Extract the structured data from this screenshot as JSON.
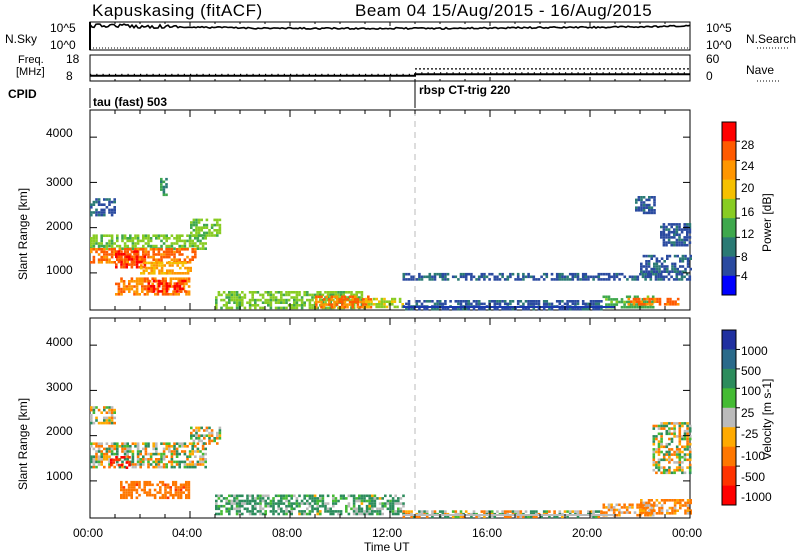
{
  "header": {
    "station": "Kapuskasing (fitACF)",
    "beam_title": "Beam 04 15/Aug/2015 - 16/Aug/2015"
  },
  "panels": {
    "nsky_label": "N.Sky",
    "nsky_ticks": [
      "10^5",
      "10^0"
    ],
    "nsearch_label": "N.Search",
    "nsearch_ticks": [
      "10^5",
      "10^0"
    ],
    "freq_label_1": "Freq.",
    "freq_label_2": "[MHz]",
    "freq_ticks": [
      "18",
      "8"
    ],
    "nave_label": "Nave",
    "nave_ticks": [
      "60",
      "0"
    ],
    "cpid_label": "CPID",
    "cpid_1": "tau (fast) 503",
    "cpid_2": "rbsp CT-trig 220"
  },
  "axes": {
    "ylabel": "Slant Range [km]",
    "yticks": [
      "4000",
      "3000",
      "2000",
      "1000"
    ],
    "xlabel": "Time UT",
    "xticks": [
      "00:00",
      "04:00",
      "08:00",
      "12:00",
      "16:00",
      "20:00",
      "00:00"
    ]
  },
  "power_bar": {
    "label": "Power [dB]",
    "ticks": [
      "28",
      "24",
      "20",
      "16",
      "12",
      "8",
      "4"
    ],
    "colors": [
      "#ff0000",
      "#ff5a00",
      "#ff9600",
      "#f5c000",
      "#88cc22",
      "#3ea84c",
      "#2a7a74",
      "#2a4aa0",
      "#0000ff"
    ]
  },
  "velocity_bar": {
    "label": "Velocity [m s-1]",
    "ticks": [
      "1000",
      "500",
      "100",
      "25",
      "-25",
      "-100",
      "-500",
      "-1000"
    ],
    "colors": [
      "#2030a0",
      "#2a6a8a",
      "#2c8c5c",
      "#44bb33",
      "#bbbbbb",
      "#ffaa00",
      "#ff7700",
      "#ff3300",
      "#ff0000"
    ]
  },
  "chart_data": [
    {
      "type": "line",
      "title": "N.Sky / N.Search",
      "x_range_hours": [
        0,
        24
      ],
      "ylim": [
        0,
        100000
      ],
      "scale": "log",
      "series": [
        {
          "name": "N.Sky",
          "x": [
            0,
            1,
            2,
            3,
            4,
            5,
            6,
            8,
            10,
            12,
            14,
            16,
            18,
            20,
            22,
            23,
            24
          ],
          "values": [
            40000,
            50000,
            30000,
            30000,
            20000,
            20000,
            15000,
            12000,
            12000,
            12000,
            12000,
            15000,
            18000,
            20000,
            25000,
            30000,
            40000
          ]
        },
        {
          "name": "N.Search",
          "x": [
            0,
            24
          ],
          "values": [
            1,
            1
          ]
        }
      ]
    },
    {
      "type": "line",
      "title": "Freq. / Nave",
      "x_range_hours": [
        0,
        24
      ],
      "series": [
        {
          "name": "Freq. [MHz]",
          "x": [
            0,
            13,
            13,
            24
          ],
          "values": [
            10,
            10,
            10.6,
            10.6
          ],
          "ylim": [
            8,
            18
          ]
        },
        {
          "name": "Nave",
          "x": [
            13,
            24
          ],
          "values": [
            28,
            28
          ],
          "ylim": [
            0,
            60
          ]
        }
      ]
    },
    {
      "type": "heatmap",
      "title": "Power [dB]",
      "x_range_hours": [
        0,
        24
      ],
      "ylim_km": [
        180,
        4600
      ],
      "value_range": [
        0,
        30
      ],
      "regions": [
        {
          "t0": 0.0,
          "t1": 1.0,
          "r0": 2300,
          "r1": 2650,
          "value": 6
        },
        {
          "t0": 0.0,
          "t1": 4.6,
          "r0": 1550,
          "r1": 1850,
          "value": 14
        },
        {
          "t0": 0.0,
          "t1": 4.2,
          "r0": 1250,
          "r1": 1550,
          "value": 24
        },
        {
          "t0": 1.0,
          "t1": 2.2,
          "r0": 1150,
          "r1": 1500,
          "value": 27
        },
        {
          "t0": 2.0,
          "t1": 4.0,
          "r0": 1000,
          "r1": 1250,
          "value": 20
        },
        {
          "t0": 1.0,
          "t1": 4.0,
          "r0": 500,
          "r1": 900,
          "value": 23
        },
        {
          "t0": 2.3,
          "t1": 3.8,
          "r0": 600,
          "r1": 850,
          "value": 27
        },
        {
          "t0": 4.0,
          "t1": 5.2,
          "r0": 1800,
          "r1": 2200,
          "value": 14
        },
        {
          "t0": 2.8,
          "t1": 3.1,
          "r0": 2700,
          "r1": 3100,
          "value": 10
        },
        {
          "t0": 5.0,
          "t1": 11.0,
          "r0": 250,
          "r1": 600,
          "value": 14
        },
        {
          "t0": 9.0,
          "t1": 11.2,
          "r0": 250,
          "r1": 500,
          "value": 24
        },
        {
          "t0": 11.0,
          "t1": 12.5,
          "r0": 250,
          "r1": 450,
          "value": 16
        },
        {
          "t0": 12.5,
          "t1": 20.5,
          "r0": 200,
          "r1": 400,
          "value": 6
        },
        {
          "t0": 12.5,
          "t1": 24.0,
          "r0": 850,
          "r1": 1000,
          "value": 6
        },
        {
          "t0": 20.5,
          "t1": 22.5,
          "r0": 250,
          "r1": 500,
          "value": 12
        },
        {
          "t0": 21.5,
          "t1": 23.5,
          "r0": 280,
          "r1": 450,
          "value": 24
        },
        {
          "t0": 22.0,
          "t1": 24.0,
          "r0": 1000,
          "r1": 1400,
          "value": 6
        },
        {
          "t0": 22.8,
          "t1": 24.0,
          "r0": 1600,
          "r1": 2100,
          "value": 6
        },
        {
          "t0": 21.8,
          "t1": 22.6,
          "r0": 2300,
          "r1": 2700,
          "value": 6
        }
      ]
    },
    {
      "type": "heatmap",
      "title": "Velocity [m s-1]",
      "x_range_hours": [
        0,
        24
      ],
      "ylim_km": [
        180,
        4600
      ],
      "value_range": [
        -1000,
        1000
      ],
      "regions": [
        {
          "t0": 0.0,
          "t1": 4.6,
          "r0": 1300,
          "r1": 1850,
          "value": 0
        },
        {
          "t0": 0.0,
          "t1": 1.0,
          "r0": 2300,
          "r1": 2650,
          "value": 0
        },
        {
          "t0": 0.8,
          "t1": 1.6,
          "r0": 1300,
          "r1": 1550,
          "value": -800
        },
        {
          "t0": 1.2,
          "t1": 4.0,
          "r0": 600,
          "r1": 1000,
          "value": -200
        },
        {
          "t0": 4.0,
          "t1": 5.2,
          "r0": 1800,
          "r1": 2200,
          "value": 0
        },
        {
          "t0": 5.0,
          "t1": 12.5,
          "r0": 250,
          "r1": 700,
          "value": 90
        },
        {
          "t0": 12.5,
          "t1": 20.5,
          "r0": 200,
          "r1": 350,
          "value": 0
        },
        {
          "t0": 20.5,
          "t1": 22.5,
          "r0": 250,
          "r1": 500,
          "value": -100
        },
        {
          "t0": 22.0,
          "t1": 24.0,
          "r0": 280,
          "r1": 600,
          "value": -100
        },
        {
          "t0": 22.5,
          "t1": 24.0,
          "r0": 1200,
          "r1": 2300,
          "value": 0
        }
      ]
    }
  ]
}
